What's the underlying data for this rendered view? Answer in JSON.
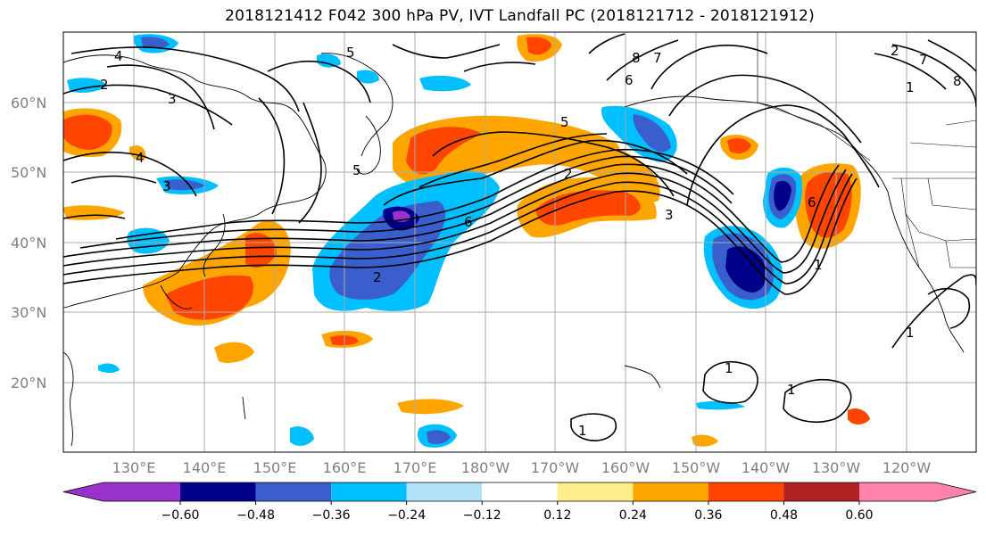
{
  "title": "2018121412 F042 300 hPa PV, IVT Landfall PC (2018121712 - 2018121912)",
  "axes": {
    "lat_ticks": [
      "60°N",
      "50°N",
      "40°N",
      "30°N",
      "20°N"
    ],
    "lon_ticks": [
      "130°E",
      "140°E",
      "150°E",
      "160°E",
      "170°E",
      "180°W",
      "170°W",
      "160°W",
      "150°W",
      "140°W",
      "130°W",
      "120°W"
    ]
  },
  "colorbar": {
    "labels": [
      "−0.60",
      "−0.48",
      "−0.36",
      "−0.24",
      "−0.12",
      "0.12",
      "0.24",
      "0.36",
      "0.48",
      "0.60"
    ],
    "colors": [
      "#9932cc",
      "#00008b",
      "#3a5fcd",
      "#00bfff",
      "#b2e2fa",
      "#ffffff",
      "#ffec8b",
      "#ffa500",
      "#ff4500",
      "#b22222",
      "#ff82ab"
    ]
  },
  "contour_labels": [
    "4",
    "5",
    "3",
    "2",
    "5",
    "4",
    "3",
    "2",
    "5",
    "6",
    "2",
    "3",
    "6",
    "7",
    "8",
    "1",
    "6",
    "1",
    "1",
    "1",
    "1",
    "1",
    "2",
    "8",
    "7"
  ]
}
